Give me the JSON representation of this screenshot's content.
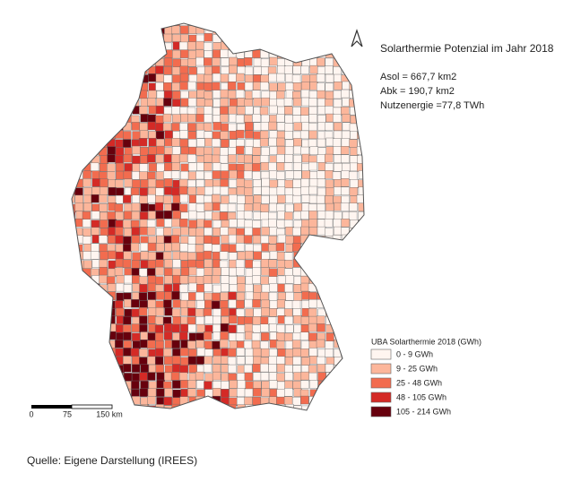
{
  "title": "Solarthermie Potenzial im Jahr 2018",
  "stats": [
    "Asol = 667,7 km2",
    "Abk  = 190,7 km2",
    "Nutzenergie =77,8 TWh"
  ],
  "legend": {
    "title": "UBA Solarthermie 2018 (GWh)",
    "items": [
      {
        "label": "0 - 9  GWh",
        "color": "#fff5f0"
      },
      {
        "label": "9 - 25 GWh",
        "color": "#fcb69b"
      },
      {
        "label": "25 - 48 GWh",
        "color": "#f26c4f"
      },
      {
        "label": "48 - 105 GWh",
        "color": "#d42a26"
      },
      {
        "label": "105 - 214 GWh",
        "color": "#67000d"
      }
    ]
  },
  "scale_bar": [
    "0",
    "75",
    "150 km"
  ],
  "source": "Quelle: Eigene Darstellung (IREES)"
}
